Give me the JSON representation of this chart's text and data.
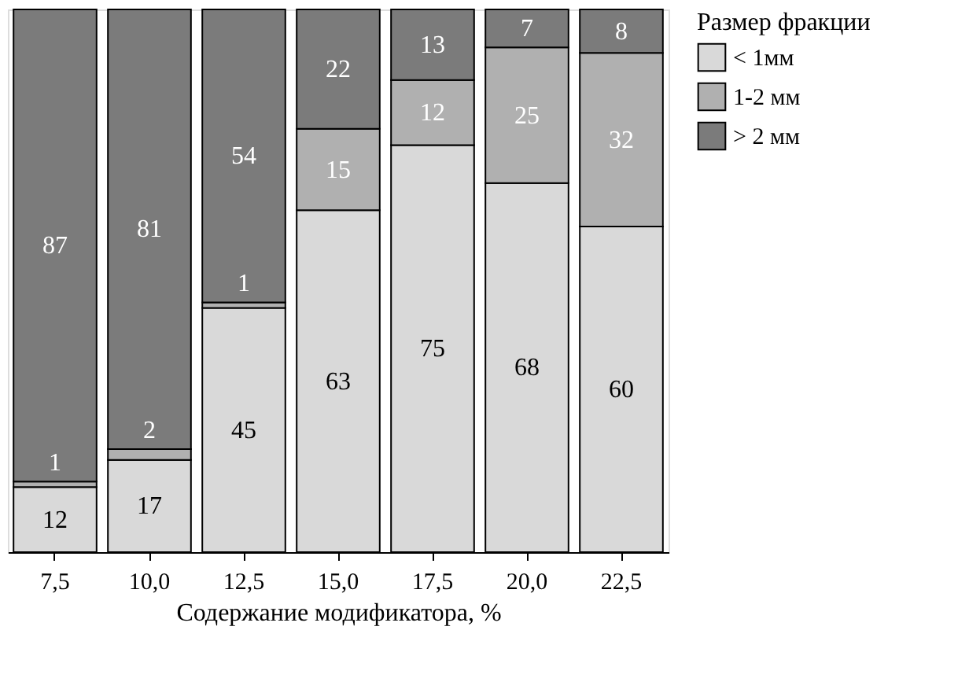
{
  "chart_data": {
    "type": "bar",
    "stacked": true,
    "data_labels": true,
    "xlabel": "Содержание модификатора, %",
    "legend_title": "Размер фракции",
    "legend": "right",
    "categories": [
      "7,5",
      "10,0",
      "12,5",
      "15,0",
      "17,5",
      "20,0",
      "22,5"
    ],
    "series": [
      {
        "name": "< 1мм",
        "color": "#d9d9d9",
        "values": [
          12,
          17,
          45,
          63,
          75,
          68,
          60
        ]
      },
      {
        "name": "1-2 мм",
        "color": "#b0b0b0",
        "values": [
          1,
          2,
          1,
          15,
          12,
          25,
          32
        ]
      },
      {
        "name": "> 2 мм",
        "color": "#7b7b7b",
        "values": [
          87,
          81,
          54,
          22,
          13,
          7,
          8
        ]
      }
    ]
  }
}
